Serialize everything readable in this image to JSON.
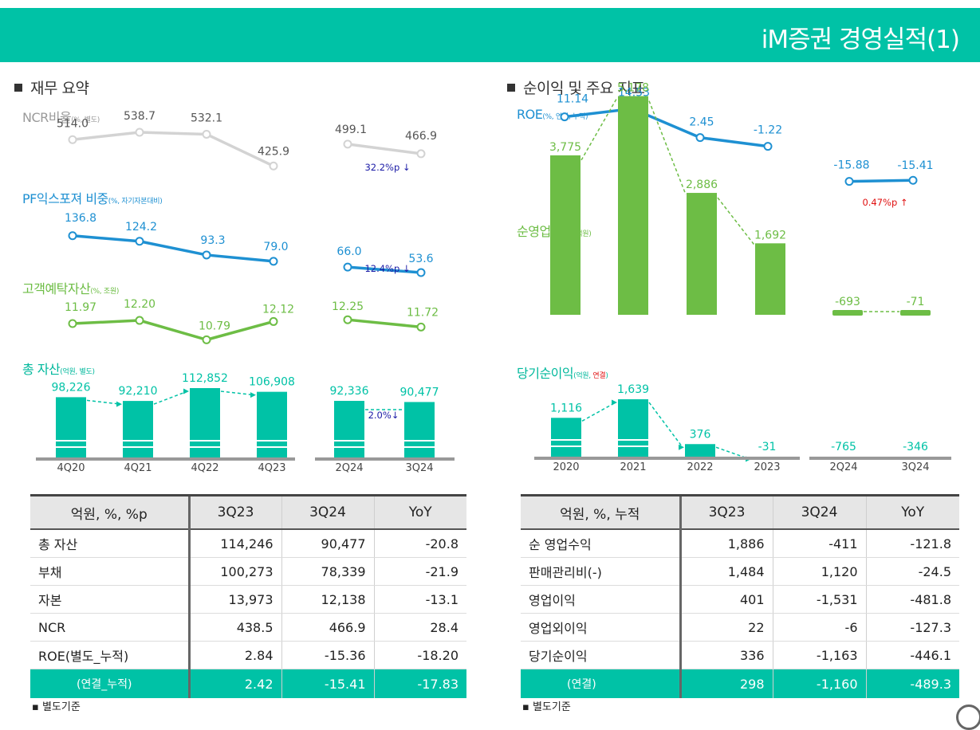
{
  "page": {
    "title": "iM증권 경영실적(1)"
  },
  "left": {
    "section_title": "재무 요약",
    "charts": {
      "ncr": {
        "label": "NCR비율",
        "unit": "(%, 별도)",
        "color": "#d3d3d3",
        "text_color": "#555555",
        "labels": [
          "514.0",
          "538.7",
          "532.1",
          "425.9"
        ],
        "values": [
          514.0,
          538.7,
          532.1,
          425.9
        ],
        "sub_labels": [
          "499.1",
          "466.9"
        ],
        "sub_values": [
          499.1,
          466.9
        ],
        "change": "32.2%p ↓",
        "change_color": "#1a1aa6"
      },
      "pf": {
        "label": "PF익스포져 비중",
        "unit": "(%, 자기자본대비)",
        "color": "#1e90d2",
        "text_color": "#1e90d2",
        "labels": [
          "136.8",
          "124.2",
          "93.3",
          "79.0"
        ],
        "values": [
          136.8,
          124.2,
          93.3,
          79.0
        ],
        "sub_labels": [
          "66.0",
          "53.6"
        ],
        "sub_values": [
          66.0,
          53.6
        ],
        "change": "12.4%p ↓",
        "change_color": "#1a1aa6"
      },
      "deposits": {
        "label": "고객예탁자산",
        "unit": "(%, 조원)",
        "color": "#6dbd45",
        "text_color": "#6dbd45",
        "labels": [
          "11.97",
          "12.20",
          "10.79",
          "12.12"
        ],
        "values": [
          11.97,
          12.2,
          10.79,
          12.12
        ],
        "sub_labels": [
          "12.25",
          "11.72"
        ],
        "sub_values": [
          12.25,
          11.72
        ]
      },
      "assets": {
        "label": "총 자산",
        "unit": "(억원, 별도)",
        "color": "#00c2a6",
        "categories": [
          "4Q20",
          "4Q21",
          "4Q22",
          "4Q23"
        ],
        "labels": [
          "98,226",
          "92,210",
          "112,852",
          "106,908"
        ],
        "values": [
          98226,
          92210,
          112852,
          106908
        ],
        "sub_categories": [
          "2Q24",
          "3Q24"
        ],
        "sub_labels": [
          "92,336",
          "90,477"
        ],
        "sub_values": [
          92336,
          90477
        ],
        "change": "2.0%↓",
        "change_color": "#1a1aa6"
      }
    },
    "table": {
      "headers": [
        "억원, %, %p",
        "3Q23",
        "3Q24",
        "YoY"
      ],
      "rows": [
        [
          "총 자산",
          "114,246",
          "90,477",
          "-20.8"
        ],
        [
          "부채",
          "100,273",
          "78,339",
          "-21.9"
        ],
        [
          "자본",
          "13,973",
          "12,138",
          "-13.1"
        ],
        [
          "NCR",
          "438.5",
          "466.9",
          "28.4"
        ],
        [
          "ROE(별도_누적)",
          "2.84",
          "-15.36",
          "-18.20"
        ]
      ],
      "highlight": [
        "(연결_누적)",
        "2.42",
        "-15.41",
        "-17.83"
      ]
    },
    "footnote": "별도기준"
  },
  "right": {
    "section_title": "순이익 및 주요 지표",
    "charts": {
      "roe": {
        "label": "ROE",
        "unit": "(%, 연결, 누적)",
        "color": "#1e90d2",
        "text_color": "#1e90d2",
        "labels": [
          "11.14",
          "14.53",
          "2.45",
          "-1.22"
        ],
        "values": [
          11.14,
          14.53,
          2.45,
          -1.22
        ],
        "sub_labels": [
          "-15.88",
          "-15.41"
        ],
        "sub_values": [
          -15.88,
          -15.41
        ],
        "change": "0.47%p ↑",
        "change_color": "#e01010"
      },
      "op_rev": {
        "label": "순영업수익",
        "unit": "(억원)",
        "color": "#6dbd45",
        "text_color": "#6dbd45",
        "labels": [
          "3,775",
          "5,178",
          "2,886",
          "1,692"
        ],
        "values": [
          3775,
          5178,
          2886,
          1692
        ],
        "sub_labels": [
          "-693",
          "-71"
        ],
        "sub_values": [
          -693,
          -71
        ]
      },
      "net_income": {
        "label": "당기순이익",
        "unit": "(억원, ",
        "unit_highlight": "연결",
        "unit_end": ")",
        "unit_highlight_color": "#e01010",
        "color": "#00c2a6",
        "categories": [
          "2020",
          "2021",
          "2022",
          "2023"
        ],
        "labels": [
          "1,116",
          "1,639",
          "376",
          "-31"
        ],
        "values": [
          1116,
          1639,
          376,
          -31
        ],
        "sub_categories": [
          "2Q24",
          "3Q24"
        ],
        "sub_labels": [
          "-765",
          "-346"
        ],
        "sub_values": [
          -765,
          -346
        ]
      }
    },
    "table": {
      "headers": [
        "억원, %, 누적",
        "3Q23",
        "3Q24",
        "YoY"
      ],
      "rows": [
        [
          "순 영업수익",
          "1,886",
          "-411",
          "-121.8"
        ],
        [
          "판매관리비(-)",
          "1,484",
          "1,120",
          "-24.5"
        ],
        [
          "영업이익",
          "401",
          "-1,531",
          "-481.8"
        ],
        [
          "영업외이익",
          "22",
          "-6",
          "-127.3"
        ],
        [
          "당기순이익",
          "336",
          "-1,163",
          "-446.1"
        ]
      ],
      "highlight": [
        "(연결)",
        "298",
        "-1,160",
        "-489.3"
      ]
    },
    "footnote": "별도기준"
  }
}
